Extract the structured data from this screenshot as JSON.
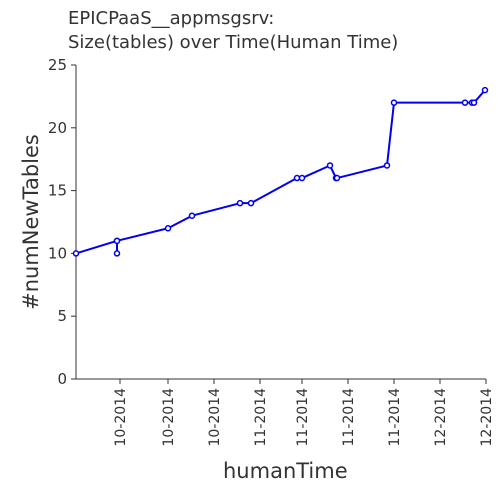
{
  "title_line1": "EPICPaaS__appmsgsrv:",
  "title_line2": "Size(tables) over Time(Human Time)",
  "chart_data": {
    "type": "line",
    "title": "EPICPaaS__appmsgsrv: Size(tables) over Time(Human Time)",
    "xlabel": "humanTime",
    "ylabel": "#numNewTables",
    "ylim": [
      0,
      25
    ],
    "yticks": [
      0,
      5,
      10,
      15,
      20,
      25
    ],
    "xtick_labels": [
      "10-2014",
      "10-2014",
      "10-2014",
      "11-2014",
      "11-2014",
      "11-2014",
      "11-2014",
      "12-2014",
      "12-2014"
    ],
    "grid": false,
    "color": "#0000ee",
    "x": [
      0,
      1,
      2,
      3,
      4,
      5,
      6,
      7,
      8,
      9,
      10,
      11,
      12,
      13,
      14,
      15,
      16,
      17,
      18
    ],
    "values": [
      10,
      11,
      10,
      11,
      12,
      13,
      14,
      14,
      16,
      16,
      17,
      16,
      16,
      17,
      22,
      22,
      22,
      22,
      23
    ]
  }
}
